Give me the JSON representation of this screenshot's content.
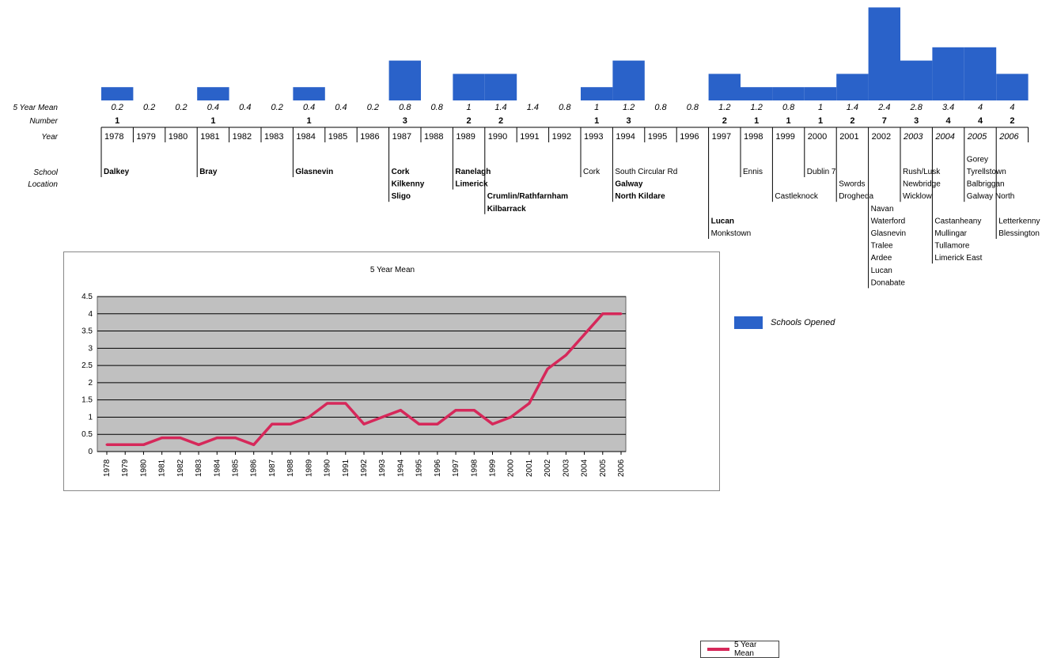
{
  "timeline": {
    "row_labels": [
      "5 Year Mean",
      "Number",
      "Year"
    ],
    "location_label": [
      "School",
      "Location"
    ],
    "years": [
      "1978",
      "1979",
      "1980",
      "1981",
      "1982",
      "1983",
      "1984",
      "1985",
      "1986",
      "1987",
      "1988",
      "1989",
      "1990",
      "1991",
      "1992",
      "1993",
      "1994",
      "1995",
      "1996",
      "1997",
      "1998",
      "1999",
      "2000",
      "2001",
      "2002",
      "2003",
      "2004",
      "2005",
      "2006"
    ],
    "italic_years": [
      "2003",
      "2004",
      "2005",
      "2006"
    ],
    "means": [
      "0.2",
      "0.2",
      "0.2",
      "0.4",
      "0.4",
      "0.2",
      "0.4",
      "0.4",
      "0.2",
      "0.8",
      "0.8",
      "1",
      "1.4",
      "1.4",
      "0.8",
      "1",
      "1.2",
      "0.8",
      "0.8",
      "1.2",
      "1.2",
      "0.8",
      "1",
      "1.4",
      "2.4",
      "2.8",
      "3.4",
      "4",
      "4"
    ],
    "numbers": [
      1,
      0,
      0,
      1,
      0,
      0,
      1,
      0,
      0,
      3,
      0,
      2,
      2,
      0,
      0,
      1,
      3,
      0,
      0,
      2,
      1,
      1,
      1,
      2,
      7,
      3,
      4,
      4,
      2
    ],
    "bar_color": "#2a62c9",
    "locations": [
      {
        "year": "1978",
        "row": 0,
        "text": "Dalkey",
        "bold": true
      },
      {
        "year": "1981",
        "row": 0,
        "text": "Bray",
        "bold": true
      },
      {
        "year": "1984",
        "row": 0,
        "text": "Glasnevin",
        "bold": true
      },
      {
        "year": "1987",
        "row": 0,
        "text": "Cork",
        "bold": true
      },
      {
        "year": "1987",
        "row": 1,
        "text": "Kilkenny",
        "bold": true
      },
      {
        "year": "1987",
        "row": 2,
        "text": "Sligo",
        "bold": true
      },
      {
        "year": "1989",
        "row": 0,
        "text": "Ranelagh",
        "bold": true
      },
      {
        "year": "1989",
        "row": 1,
        "text": "Limerick",
        "bold": true
      },
      {
        "year": "1990",
        "row": 2,
        "text": "Crumlin/Rathfarnham",
        "bold": true
      },
      {
        "year": "1990",
        "row": 3,
        "text": "Kilbarrack",
        "bold": true
      },
      {
        "year": "1993",
        "row": 0,
        "text": "Cork",
        "bold": false
      },
      {
        "year": "1994",
        "row": 0,
        "text": "South Circular Rd",
        "bold": false
      },
      {
        "year": "1994",
        "row": 1,
        "text": "Galway",
        "bold": true
      },
      {
        "year": "1994",
        "row": 2,
        "text": "North Kildare",
        "bold": true
      },
      {
        "year": "1997",
        "row": 4,
        "text": "Lucan",
        "bold": true
      },
      {
        "year": "1997",
        "row": 5,
        "text": "Monkstown",
        "bold": false
      },
      {
        "year": "1998",
        "row": 0,
        "text": "Ennis",
        "bold": false
      },
      {
        "year": "1999",
        "row": 2,
        "text": "Castleknock",
        "bold": false
      },
      {
        "year": "2000",
        "row": 0,
        "text": "Dublin 7",
        "bold": false
      },
      {
        "year": "2001",
        "row": 1,
        "text": "Swords",
        "bold": false
      },
      {
        "year": "2001",
        "row": 2,
        "text": "Drogheda",
        "bold": false
      },
      {
        "year": "2002",
        "row": 3,
        "text": "Navan",
        "bold": false
      },
      {
        "year": "2002",
        "row": 4,
        "text": "Waterford",
        "bold": false
      },
      {
        "year": "2002",
        "row": 5,
        "text": "Glasnevin",
        "bold": false
      },
      {
        "year": "2002",
        "row": 6,
        "text": "Tralee",
        "bold": false
      },
      {
        "year": "2002",
        "row": 7,
        "text": "Ardee",
        "bold": false
      },
      {
        "year": "2002",
        "row": 8,
        "text": "Lucan",
        "bold": false
      },
      {
        "year": "2002",
        "row": 9,
        "text": "Donabate",
        "bold": false
      },
      {
        "year": "2003",
        "row": 0,
        "text": "Rush/Lusk",
        "bold": false
      },
      {
        "year": "2003",
        "row": 1,
        "text": "Newbridge",
        "bold": false
      },
      {
        "year": "2003",
        "row": 2,
        "text": "Wicklow",
        "bold": false
      },
      {
        "year": "2004",
        "row": 4,
        "text": "Castanheany",
        "bold": false
      },
      {
        "year": "2004",
        "row": 5,
        "text": "Mullingar",
        "bold": false
      },
      {
        "year": "2004",
        "row": 6,
        "text": "Tullamore",
        "bold": false
      },
      {
        "year": "2004",
        "row": 7,
        "text": "Limerick East",
        "bold": false
      },
      {
        "year": "2005",
        "row": -1,
        "text": "Gorey",
        "bold": false
      },
      {
        "year": "2005",
        "row": 0,
        "text": "Tyrellstown",
        "bold": false
      },
      {
        "year": "2005",
        "row": 1,
        "text": "Balbriggan",
        "bold": false
      },
      {
        "year": "2005",
        "row": 2,
        "text": "Galway North",
        "bold": false
      },
      {
        "year": "2006",
        "row": 4,
        "text": "Letterkenny",
        "bold": false
      },
      {
        "year": "2006",
        "row": 5,
        "text": "Blessington",
        "bold": false
      }
    ]
  },
  "bar_legend": {
    "label": "Schools Opened"
  },
  "chart_data": {
    "type": "line",
    "title": "5 Year Mean",
    "xlabel": "",
    "ylabel": "",
    "categories": [
      "1978",
      "1979",
      "1980",
      "1981",
      "1982",
      "1983",
      "1984",
      "1985",
      "1986",
      "1987",
      "1988",
      "1989",
      "1990",
      "1991",
      "1992",
      "1993",
      "1994",
      "1995",
      "1996",
      "1997",
      "1998",
      "1999",
      "2000",
      "2001",
      "2002",
      "2003",
      "2004",
      "2005",
      "2006"
    ],
    "series": [
      {
        "name": "5 Year Mean",
        "values": [
          0.2,
          0.2,
          0.2,
          0.4,
          0.4,
          0.2,
          0.4,
          0.4,
          0.2,
          0.8,
          0.8,
          1,
          1.4,
          1.4,
          0.8,
          1,
          1.2,
          0.8,
          0.8,
          1.2,
          1.2,
          0.8,
          1,
          1.4,
          2.4,
          2.8,
          3.4,
          4,
          4
        ]
      }
    ],
    "ylim": [
      0,
      4.5
    ],
    "yticks": [
      "0",
      "0.5",
      "1",
      "1.5",
      "2",
      "2.5",
      "3",
      "3.5",
      "4",
      "4.5"
    ],
    "grid": true,
    "legend": "right",
    "line_color": "#d6285a",
    "plot_bg": "#c0c0c0"
  }
}
